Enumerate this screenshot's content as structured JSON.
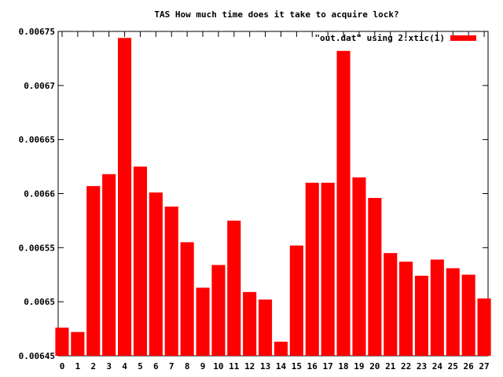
{
  "chart_data": {
    "type": "bar",
    "title": "TAS How much time does it take to acquire lock?",
    "xlabel": "",
    "ylabel": "",
    "categories": [
      "0",
      "1",
      "2",
      "3",
      "4",
      "5",
      "6",
      "7",
      "8",
      "9",
      "10",
      "11",
      "12",
      "13",
      "14",
      "15",
      "16",
      "17",
      "18",
      "19",
      "20",
      "21",
      "22",
      "23",
      "24",
      "25",
      "26",
      "27"
    ],
    "series": [
      {
        "name": "\"out.dat\" using 2:xtic(1)",
        "color": "#ff0000",
        "values": [
          0.006476,
          0.006472,
          0.006607,
          0.006618,
          0.006744,
          0.006625,
          0.006601,
          0.006588,
          0.006555,
          0.006513,
          0.006534,
          0.006575,
          0.006509,
          0.006502,
          0.006463,
          0.006552,
          0.00661,
          0.00661,
          0.006732,
          0.006615,
          0.006596,
          0.006545,
          0.006537,
          0.006524,
          0.006539,
          0.006531,
          0.006525,
          0.006503
        ]
      }
    ],
    "ylim": [
      0.00645,
      0.00675
    ],
    "yticks": [
      "0.00675",
      "0.0067",
      "0.00665",
      "0.0066",
      "0.00655",
      "0.0065",
      "0.00645"
    ],
    "grid": false,
    "legend_position": "top-right"
  }
}
